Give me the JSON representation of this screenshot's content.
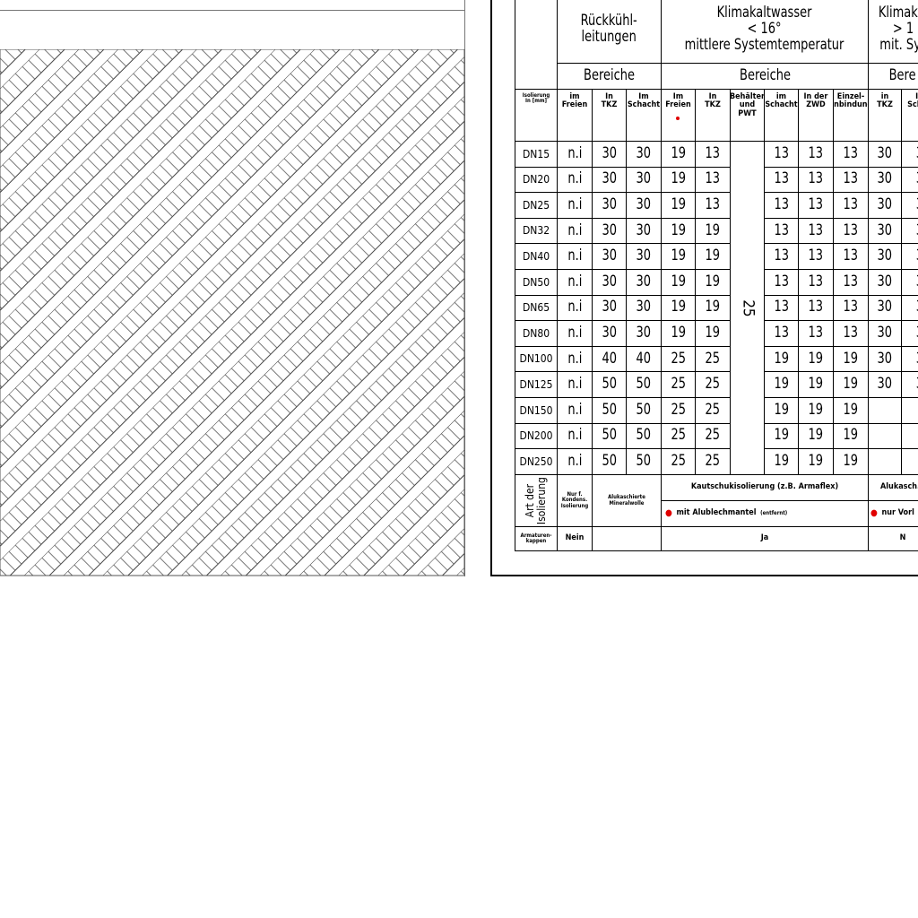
{
  "header": {
    "rueckkuehl": "Rückkühl-\nleitungen",
    "klima_lt16": "Klimakaltwasser\n< 16°\nmittlere Systemtemperatur",
    "klima_gt16": "Klimakal\n> 1\nmit. Sys",
    "bereiche": "Bereiche",
    "bereiche_cut": "Bere"
  },
  "subheaders": [
    "Isolierung\nIn [mm]",
    "im\nFreien",
    "In\nTKZ",
    "Im\nSchacht",
    "Im\nFreien",
    "In\nTKZ",
    "Behälter\nund\nPWT",
    "im\nSchacht",
    "In der\nZWD",
    "Einzel-\nanbindung",
    "in\nTKZ",
    "In\nSchac"
  ],
  "merged_value": "25",
  "rows": [
    [
      "DN15",
      "n.i",
      "30",
      "30",
      "19",
      "13",
      "13",
      "13",
      "13",
      "30",
      "3"
    ],
    [
      "DN20",
      "n.i",
      "30",
      "30",
      "19",
      "13",
      "13",
      "13",
      "13",
      "30",
      "3"
    ],
    [
      "DN25",
      "n.i",
      "30",
      "30",
      "19",
      "13",
      "13",
      "13",
      "13",
      "30",
      "3"
    ],
    [
      "DN32",
      "n.i",
      "30",
      "30",
      "19",
      "19",
      "13",
      "13",
      "13",
      "30",
      "3"
    ],
    [
      "DN40",
      "n.i",
      "30",
      "30",
      "19",
      "19",
      "13",
      "13",
      "13",
      "30",
      "3"
    ],
    [
      "DN50",
      "n.i",
      "30",
      "30",
      "19",
      "19",
      "13",
      "13",
      "13",
      "30",
      "3"
    ],
    [
      "DN65",
      "n.i",
      "30",
      "30",
      "19",
      "19",
      "13",
      "13",
      "13",
      "30",
      "3"
    ],
    [
      "DN80",
      "n.i",
      "30",
      "30",
      "19",
      "19",
      "13",
      "13",
      "13",
      "30",
      "3"
    ],
    [
      "DN100",
      "n.i",
      "40",
      "40",
      "25",
      "25",
      "19",
      "19",
      "19",
      "30",
      "3"
    ],
    [
      "DN125",
      "n.i",
      "50",
      "50",
      "25",
      "25",
      "19",
      "19",
      "19",
      "30",
      "3"
    ],
    [
      "DN150",
      "n.i",
      "50",
      "50",
      "25",
      "25",
      "19",
      "19",
      "19",
      "",
      ""
    ],
    [
      "DN200",
      "n.i",
      "50",
      "50",
      "25",
      "25",
      "19",
      "19",
      "19",
      "",
      ""
    ],
    [
      "DN250",
      "n.i",
      "50",
      "50",
      "25",
      "25",
      "19",
      "19",
      "19",
      "",
      ""
    ]
  ],
  "footer": {
    "art_label": "Art der\nIsolierung",
    "nur_fuer": "Nur f.\nKondens.\nIsolierung",
    "alukasch": "Alukaschierte\nMineralwolle",
    "kautschuk": "Kautschukisolierung (z.B. Armaflex)",
    "mit_alublech": "mit Alublechmantel",
    "mit_alublech_note": "(entfernt)",
    "alukasch_cut": "Alukasch. I",
    "nur_vor": "nur Vorl",
    "armaturen": "Armaturen-\nkappen",
    "nein": "Nein",
    "ja": "Ja",
    "n_cut": "N"
  },
  "colors": {
    "marker": "#e00000",
    "green_tick": "#3a3"
  }
}
